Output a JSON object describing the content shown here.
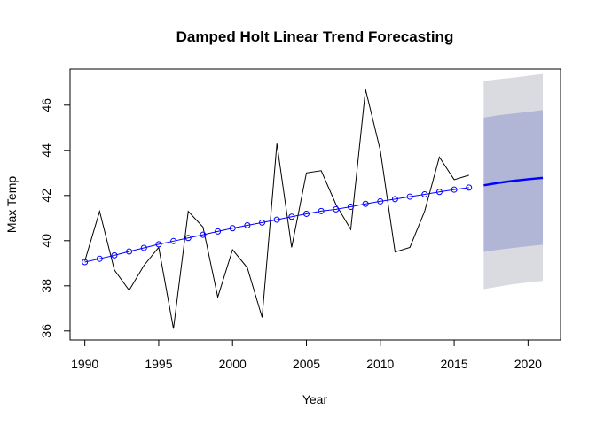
{
  "chart_data": {
    "type": "line",
    "title": "Damped Holt Linear Trend Forecasting",
    "xlabel": "Year",
    "ylabel": "Max Temp",
    "xlim": [
      1989,
      2022.2
    ],
    "ylim": [
      35.6,
      47.6
    ],
    "x_ticks": [
      1990,
      1995,
      2000,
      2005,
      2010,
      2015,
      2020
    ],
    "y_ticks": [
      36,
      38,
      40,
      42,
      44,
      46
    ],
    "grid": false,
    "series": [
      {
        "role": "observed",
        "color": "#000000",
        "x": [
          1990,
          1991,
          1992,
          1993,
          1994,
          1995,
          1996,
          1997,
          1998,
          1999,
          2000,
          2001,
          2002,
          2003,
          2004,
          2005,
          2006,
          2007,
          2008,
          2009,
          2010,
          2011,
          2012,
          2013,
          2014,
          2015,
          2016
        ],
        "y": [
          39.1,
          41.3,
          38.7,
          37.8,
          38.9,
          39.7,
          36.1,
          41.3,
          40.6,
          37.5,
          39.6,
          38.8,
          36.6,
          44.3,
          39.7,
          43.0,
          43.1,
          41.6,
          40.5,
          46.7,
          44.0,
          39.5,
          39.7,
          41.3,
          43.7,
          42.7,
          42.9
        ]
      },
      {
        "role": "fitted",
        "color": "#0000ff",
        "marker": "open-circle",
        "x": [
          1990,
          1991,
          1992,
          1993,
          1994,
          1995,
          1996,
          1997,
          1998,
          1999,
          2000,
          2001,
          2002,
          2003,
          2004,
          2005,
          2006,
          2007,
          2008,
          2009,
          2010,
          2011,
          2012,
          2013,
          2014,
          2015,
          2016
        ],
        "y": [
          39.05,
          39.2,
          39.35,
          39.52,
          39.68,
          39.84,
          39.98,
          40.12,
          40.26,
          40.41,
          40.55,
          40.68,
          40.8,
          40.93,
          41.06,
          41.19,
          41.31,
          41.39,
          41.5,
          41.63,
          41.74,
          41.84,
          41.95,
          42.05,
          42.16,
          42.26,
          42.35
        ]
      },
      {
        "role": "forecast",
        "color": "#0000ff",
        "x": [
          2017,
          2018,
          2019,
          2020,
          2021
        ],
        "y": [
          42.45,
          42.56,
          42.65,
          42.72,
          42.78
        ],
        "interval_80": {
          "color": "#b1b5d6",
          "lower": [
            39.5,
            39.6,
            39.68,
            39.75,
            39.82
          ],
          "upper": [
            45.45,
            45.55,
            45.63,
            45.7,
            45.78
          ]
        },
        "interval_95": {
          "color": "#dadae1",
          "lower": [
            37.85,
            37.97,
            38.07,
            38.15,
            38.22
          ],
          "upper": [
            47.07,
            47.15,
            47.22,
            47.3,
            47.38
          ]
        }
      }
    ]
  }
}
